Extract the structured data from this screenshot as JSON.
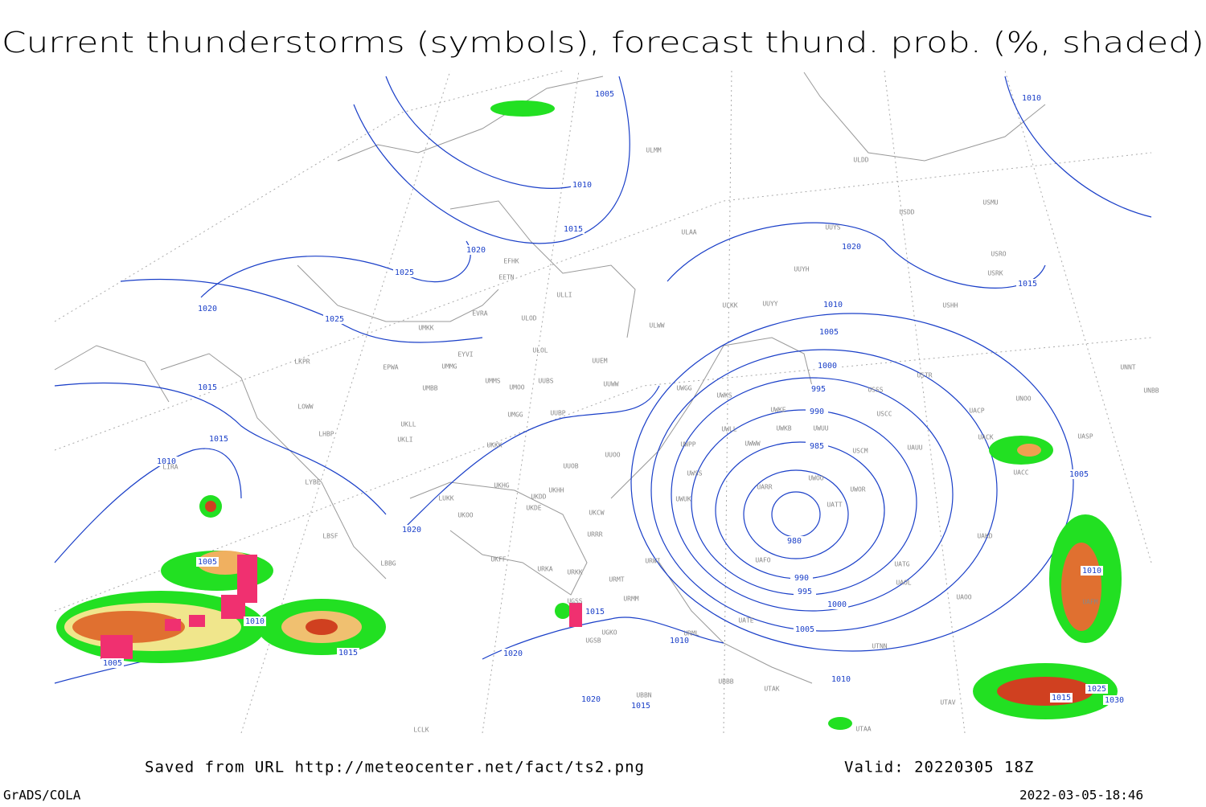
{
  "header": {
    "title": "Current thunderstorms (symbols), forecast thund. prob. (%, shaded)"
  },
  "footer": {
    "source": "Saved from URL http://meteocenter.net/fact/ts2.png",
    "valid": "Valid: 20220305 18Z",
    "software": "GrADS/COLA",
    "timestamp": "2022-03-05-18:46"
  },
  "isobar_labels": [
    1005,
    1010,
    1015,
    1020,
    1025,
    1020,
    1025,
    1015,
    1015,
    1010,
    1005,
    1010,
    1005,
    1015,
    1020,
    1020,
    1015,
    1010,
    1020,
    1015,
    1020,
    1010,
    1005,
    1000,
    995,
    990,
    985,
    980,
    990,
    995,
    1000,
    1005,
    1010,
    1010,
    1015,
    1005,
    1010,
    1025,
    1015,
    1030
  ],
  "stations": [
    "ULMM",
    "ULDD",
    "USMU",
    "USDD",
    "UUYS",
    "ULAA",
    "USRO",
    "UUYH",
    "USRK",
    "EFHK",
    "EETN",
    "ULLI",
    "ULKK",
    "UUYY",
    "USHH",
    "EVRA",
    "ULOD",
    "ULWW",
    "UMKK",
    "EYVI",
    "ULOL",
    "LKPR",
    "EPWA",
    "UMMG",
    "UUEM",
    "USTR",
    "UNNT",
    "UMMS",
    "UMOO",
    "UUBS",
    "UUWW",
    "UMBB",
    "UWGG",
    "UWKS",
    "USSS",
    "UNBB",
    "UNOO",
    "LOWW",
    "UMGG",
    "UUBP",
    "UWKE",
    "USCC",
    "UACP",
    "UWKB",
    "UWUU",
    "UWLL",
    "LHBP",
    "UKLL",
    "UKLI",
    "UKKK",
    "UWWW",
    "UACK",
    "USCM",
    "UAUU",
    "UASP",
    "UWPP",
    "UUOO",
    "UUOB",
    "LYBE",
    "UWSS",
    "UACC",
    "UKHH",
    "UKHG",
    "UARR",
    "UWOO",
    "UWOR",
    "UKDD",
    "UKDE",
    "LUKK",
    "UWUK",
    "UKOO",
    "UATT",
    "UKCW",
    "UAKD",
    "LBSF",
    "URRR",
    "LBBG",
    "UKFF",
    "URWI",
    "UAFO",
    "URKK",
    "URKA",
    "UATG",
    "URMT",
    "UAOL",
    "URMM",
    "UAOO",
    "UAFM",
    "UGSS",
    "URML",
    "UATE",
    "UGKO",
    "UGSB",
    "UTNN",
    "UBBB",
    "UTAK",
    "UBBN",
    "UTAV",
    "UTAA",
    "LCLK",
    "LIRA"
  ]
}
